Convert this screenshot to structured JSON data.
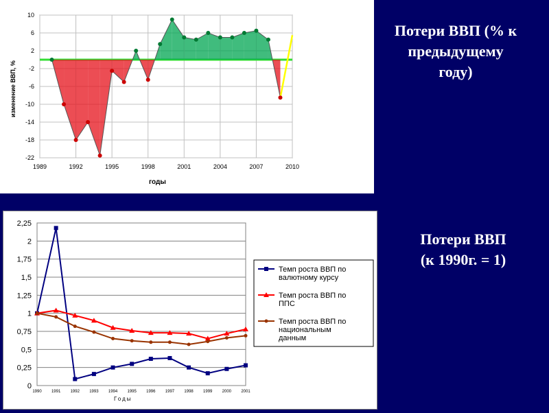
{
  "slide": {
    "caption_top": [
      "Потери ВВП (% к",
      "предыдущему",
      "году)"
    ],
    "caption_bottom": [
      "Потери ВВП",
      "(к 1990г. = 1)"
    ],
    "background": "#000066"
  },
  "chart_data": [
    {
      "type": "area",
      "title": "",
      "xlabel": "годы",
      "ylabel": "изменение ВВП, %",
      "xlim": [
        1989,
        2010
      ],
      "ylim": [
        -22,
        10
      ],
      "x_ticks": [
        "1989",
        "1992",
        "1995",
        "1998",
        "2001",
        "2004",
        "2007",
        "2010"
      ],
      "y_ticks": [
        "10",
        "6",
        "2",
        "-2",
        "-6",
        "-10",
        "-14",
        "-18",
        "-22"
      ],
      "grid": true,
      "baseline": 0,
      "x": [
        1990,
        1991,
        1992,
        1993,
        1994,
        1995,
        1996,
        1997,
        1998,
        1999,
        2000,
        2001,
        2002,
        2003,
        2004,
        2005,
        2006,
        2007,
        2008,
        2009
      ],
      "values": [
        -0.0,
        -10,
        -18,
        -14,
        -21.5,
        -2.5,
        -5,
        2,
        -4.5,
        3.5,
        9,
        5,
        4.5,
        6,
        5,
        5,
        6,
        6.5,
        4.5,
        -8.5
      ],
      "colors": {
        "positive": "#00a651",
        "negative": "#e6121b",
        "baseline": "#33dd33",
        "projection": "#ffff00"
      }
    },
    {
      "type": "line",
      "title": "",
      "xlabel": "Годы",
      "ylabel": "",
      "categories": [
        "1990",
        "1991",
        "1992",
        "1993",
        "1994",
        "1995",
        "1996",
        "1997",
        "1998",
        "1999",
        "2000",
        "2001"
      ],
      "ylim": [
        0,
        2.25
      ],
      "y_ticks": [
        "0",
        "0,25",
        "0,5",
        "0,75",
        "1",
        "1,25",
        "1,5",
        "1,75",
        "2",
        "2,25"
      ],
      "grid": true,
      "legend_position": "right",
      "series": [
        {
          "name": "Темп роста ВВП по валютному курсу",
          "color": "#000080",
          "marker": "square",
          "values": [
            1,
            2.18,
            0.09,
            0.16,
            0.25,
            0.3,
            0.37,
            0.38,
            0.25,
            0.17,
            0.23,
            0.28
          ]
        },
        {
          "name": "Темп роста ВВП по ППС",
          "color": "#ff0000",
          "marker": "triangle",
          "values": [
            1,
            1.04,
            0.97,
            0.9,
            0.8,
            0.76,
            0.73,
            0.73,
            0.72,
            0.65,
            0.72,
            0.78
          ]
        },
        {
          "name": "Темп роста ВВП по национальным данным",
          "color": "#993300",
          "marker": "circle",
          "values": [
            1,
            0.95,
            0.82,
            0.74,
            0.65,
            0.62,
            0.6,
            0.6,
            0.57,
            0.61,
            0.66,
            0.69
          ]
        }
      ]
    }
  ]
}
